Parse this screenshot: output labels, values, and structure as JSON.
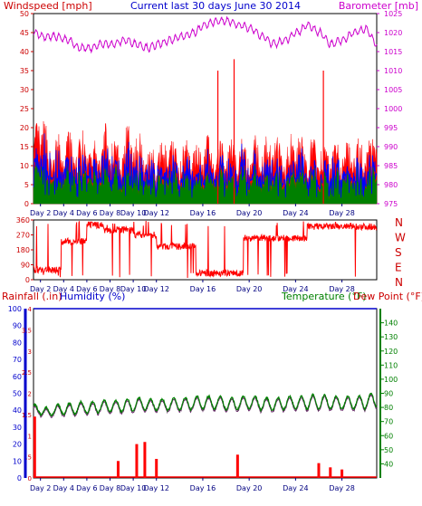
{
  "header": {
    "left_title": "Windspeed [mph]",
    "center_title": "Current last 30 days June 30 2014",
    "right_title": "Barometer [mb]"
  },
  "lower_header": {
    "rainfall": "Rainfall (.in)",
    "humidity": "Humidity (%)",
    "temperature": "Temperature (°F)",
    "dewpoint": "Dew Point (°F)"
  },
  "colors": {
    "wind": "#ff0000",
    "gust": "#0000ff",
    "green": "#008000",
    "baro": "#cc00cc",
    "title": "#0000cc",
    "rain": "#ff0000",
    "humidity": "#0000cc",
    "temp": "#008000",
    "dew": "#6b2a6b",
    "axis": "#cc0000"
  },
  "chart_data": [
    {
      "type": "area",
      "name": "wind-barometer",
      "title": "Current last 30 days June 30 2014",
      "ylabel_left": "Windspeed [mph]",
      "ylabel_right": "Barometer [mb]",
      "ylim_left": [
        0,
        50
      ],
      "yticks_left": [
        "0",
        "5",
        "10",
        "15",
        "20",
        "25",
        "30",
        "35",
        "40",
        "45",
        "50"
      ],
      "ylim_right": [
        975,
        1025
      ],
      "yticks_right": [
        "975",
        "980",
        "985",
        "990",
        "995",
        "1000",
        "1005",
        "1010",
        "1015",
        "1020",
        "1025"
      ],
      "x_range_days": [
        1.4,
        31
      ],
      "x_ticks": [
        "Day 2",
        "Day 4",
        "Day 6",
        "Day 8",
        "Day 10",
        "Day 12",
        "Day 16",
        "Day 20",
        "Day 24",
        "Day 28"
      ],
      "x_tick_days": [
        2,
        4,
        6,
        8,
        10,
        12,
        16,
        20,
        24,
        28
      ],
      "barometer": [
        1020,
        1019,
        1019,
        1018,
        1016,
        1016,
        1017,
        1017,
        1018,
        1017,
        1016,
        1017,
        1018,
        1019,
        1020,
        1022,
        1023,
        1023,
        1022,
        1021,
        1019,
        1017,
        1018,
        1020,
        1022,
        1020,
        1017,
        1018,
        1020,
        1021,
        1017
      ],
      "wind_peaks": [
        14,
        26,
        20,
        15,
        17,
        15,
        18,
        15,
        17,
        18,
        16,
        16,
        18,
        20,
        18,
        16,
        18,
        19,
        20,
        16,
        15,
        14,
        14,
        16,
        17,
        14,
        15,
        15,
        16,
        15,
        17,
        15,
        14,
        16,
        15,
        15,
        16,
        16,
        15,
        16,
        15,
        16,
        19,
        15,
        15,
        17,
        18,
        16,
        14,
        18,
        16,
        14,
        15,
        14,
        16,
        14,
        20,
        14,
        17,
        15,
        24
      ],
      "gust_spikes": [
        {
          "day": 17.3,
          "value": 35
        },
        {
          "day": 18.7,
          "value": 38
        },
        {
          "day": 26.4,
          "value": 35
        }
      ]
    },
    {
      "type": "line",
      "name": "wind-direction",
      "yticks": [
        "0",
        "90",
        "180",
        "270",
        "360"
      ],
      "ylim": [
        0,
        360
      ],
      "compass_labels": [
        "N",
        "W",
        "S",
        "E",
        "N"
      ],
      "x_ticks": [
        "Day 2",
        "Day 4",
        "Day 6",
        "Day 8",
        "Day 10",
        "Day 12",
        "Day 16",
        "Day 20",
        "Day 24",
        "Day 28"
      ],
      "x_tick_days": [
        2,
        4,
        6,
        8,
        10,
        12,
        16,
        20,
        24,
        28
      ],
      "segments": [
        {
          "from": 1.4,
          "to": 3.8,
          "level": 60
        },
        {
          "from": 3.8,
          "to": 6.0,
          "level": 230
        },
        {
          "from": 6.0,
          "to": 7.4,
          "level": 330
        },
        {
          "from": 7.4,
          "to": 10.0,
          "level": 300
        },
        {
          "from": 10.0,
          "to": 12.0,
          "level": 270
        },
        {
          "from": 12.0,
          "to": 15.4,
          "level": 200
        },
        {
          "from": 15.4,
          "to": 19.5,
          "level": 40
        },
        {
          "from": 19.5,
          "to": 25.0,
          "level": 250
        },
        {
          "from": 25.0,
          "to": 31.0,
          "level": 320
        }
      ]
    },
    {
      "type": "line",
      "name": "rain-humidity-temperature",
      "ylabel_rain": "Rainfall (.in)",
      "ylabel_humidity": "Humidity (%)",
      "ylabel_temp": "Temperature (°F)",
      "ylabel_dew": "Dew Point (°F)",
      "humidity_ticks": [
        "0",
        "10",
        "20",
        "30",
        "40",
        "50",
        "60",
        "70",
        "80",
        "90",
        "100"
      ],
      "rain_ticks": [
        "0",
        ".5",
        "1",
        "1.5",
        "2",
        "2.5",
        "3",
        "3.5",
        "4"
      ],
      "temp_ticks": [
        "40",
        "50",
        "60",
        "70",
        "80",
        "90",
        "100",
        "110",
        "120",
        "130",
        "140"
      ],
      "ylim_humidity": [
        0,
        100
      ],
      "ylim_rain": [
        0,
        4
      ],
      "ylim_temp": [
        30,
        150
      ],
      "x_ticks": [
        "Day 2",
        "Day 4",
        "Day 6",
        "Day 8",
        "Day 10",
        "Day 12",
        "Day 16",
        "Day 20",
        "Day 24",
        "Day 28"
      ],
      "x_tick_days": [
        2,
        4,
        6,
        8,
        10,
        12,
        16,
        20,
        24,
        28
      ],
      "humidity": 100,
      "temperature_daily_max": [
        82,
        80,
        82,
        83,
        84,
        84,
        85,
        85,
        86,
        87,
        86,
        86,
        87,
        87,
        88,
        88,
        88,
        87,
        88,
        88,
        87,
        87,
        88,
        88,
        89,
        89,
        88,
        88,
        88,
        90
      ],
      "temperature_daily_min": [
        76,
        74,
        75,
        75,
        76,
        76,
        77,
        77,
        77,
        78,
        78,
        78,
        78,
        78,
        79,
        79,
        79,
        78,
        79,
        79,
        78,
        78,
        79,
        79,
        79,
        79,
        79,
        79,
        79,
        80
      ],
      "rainfall_daily": [
        {
          "day": 1.5,
          "value": 1.45
        },
        {
          "day": 8.7,
          "value": 0.4
        },
        {
          "day": 10.3,
          "value": 0.8
        },
        {
          "day": 11.0,
          "value": 0.85
        },
        {
          "day": 12.0,
          "value": 0.45
        },
        {
          "day": 19.0,
          "value": 0.55
        },
        {
          "day": 26.0,
          "value": 0.35
        },
        {
          "day": 27.0,
          "value": 0.25
        },
        {
          "day": 28.0,
          "value": 0.2
        }
      ]
    }
  ]
}
